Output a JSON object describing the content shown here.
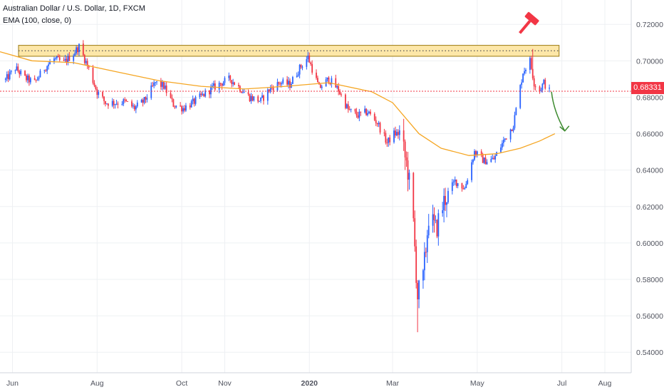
{
  "chart_data": {
    "type": "candlestick",
    "title": "Australian Dollar / U.S. Dollar, 1D, FXCM",
    "indicator_label": "EMA (100, close, 0)",
    "last_price_label": "0.68331",
    "last_price": 0.68331,
    "ylim": [
      0.535,
      0.724
    ],
    "y_ticks": [
      "0.54000",
      "0.56000",
      "0.58000",
      "0.60000",
      "0.62000",
      "0.64000",
      "0.66000",
      "0.68000",
      "0.70000",
      "0.72000"
    ],
    "y_tick_values": [
      0.54,
      0.56,
      0.58,
      0.6,
      0.62,
      0.64,
      0.66,
      0.68,
      0.7,
      0.72
    ],
    "x_range": [
      "2019-05-23",
      "2020-08-20"
    ],
    "x_ticks": [
      {
        "label": "Jun",
        "date": "2019-06-01",
        "bold": false
      },
      {
        "label": "Aug",
        "date": "2019-08-01",
        "bold": false
      },
      {
        "label": "Oct",
        "date": "2019-10-01",
        "bold": false
      },
      {
        "label": "Nov",
        "date": "2019-11-01",
        "bold": false
      },
      {
        "label": "2020",
        "date": "2020-01-01",
        "bold": true
      },
      {
        "label": "Mar",
        "date": "2020-03-01",
        "bold": false
      },
      {
        "label": "May",
        "date": "2020-05-01",
        "bold": false
      },
      {
        "label": "Jul",
        "date": "2020-07-01",
        "bold": false
      },
      {
        "label": "Aug",
        "date": "2020-08-01",
        "bold": false
      }
    ],
    "grid": true,
    "price_path": [
      [
        "2019-05-27",
        0.6895
      ],
      [
        "2019-06-03",
        0.696
      ],
      [
        "2019-06-10",
        0.6905
      ],
      [
        "2019-06-17",
        0.688
      ],
      [
        "2019-06-24",
        0.696
      ],
      [
        "2019-07-01",
        0.701
      ],
      [
        "2019-07-08",
        0.699
      ],
      [
        "2019-07-15",
        0.704
      ],
      [
        "2019-07-19",
        0.708
      ],
      [
        "2019-07-25",
        0.6975
      ],
      [
        "2019-08-01",
        0.683
      ],
      [
        "2019-08-07",
        0.677
      ],
      [
        "2019-08-14",
        0.677
      ],
      [
        "2019-08-21",
        0.6775
      ],
      [
        "2019-08-28",
        0.674
      ],
      [
        "2019-09-04",
        0.678
      ],
      [
        "2019-09-12",
        0.688
      ],
      [
        "2019-09-18",
        0.686
      ],
      [
        "2019-09-25",
        0.676
      ],
      [
        "2019-10-02",
        0.674
      ],
      [
        "2019-10-09",
        0.677
      ],
      [
        "2019-10-16",
        0.681
      ],
      [
        "2019-10-23",
        0.685
      ],
      [
        "2019-10-30",
        0.688
      ],
      [
        "2019-11-05",
        0.69
      ],
      [
        "2019-11-12",
        0.685
      ],
      [
        "2019-11-19",
        0.68
      ],
      [
        "2019-11-27",
        0.678
      ],
      [
        "2019-12-04",
        0.685
      ],
      [
        "2019-12-11",
        0.688
      ],
      [
        "2019-12-18",
        0.687
      ],
      [
        "2019-12-25",
        0.696
      ],
      [
        "2019-12-31",
        0.702
      ],
      [
        "2020-01-08",
        0.685
      ],
      [
        "2020-01-15",
        0.69
      ],
      [
        "2020-01-22",
        0.684
      ],
      [
        "2020-01-29",
        0.673
      ],
      [
        "2020-02-05",
        0.67
      ],
      [
        "2020-02-12",
        0.672
      ],
      [
        "2020-02-19",
        0.666
      ],
      [
        "2020-02-26",
        0.655
      ],
      [
        "2020-03-02",
        0.66
      ],
      [
        "2020-03-06",
        0.66
      ],
      [
        "2020-03-12",
        0.64
      ],
      [
        "2020-03-16",
        0.61
      ],
      [
        "2020-03-19",
        0.571
      ],
      [
        "2020-03-23",
        0.58
      ],
      [
        "2020-03-27",
        0.615
      ],
      [
        "2020-04-01",
        0.607
      ],
      [
        "2020-04-08",
        0.625
      ],
      [
        "2020-04-15",
        0.634
      ],
      [
        "2020-04-22",
        0.63
      ],
      [
        "2020-04-29",
        0.65
      ],
      [
        "2020-05-06",
        0.645
      ],
      [
        "2020-05-13",
        0.646
      ],
      [
        "2020-05-20",
        0.656
      ],
      [
        "2020-05-27",
        0.665
      ],
      [
        "2020-06-03",
        0.694
      ],
      [
        "2020-06-08",
        0.7
      ],
      [
        "2020-06-11",
        0.688
      ],
      [
        "2020-06-15",
        0.684
      ],
      [
        "2020-06-18",
        0.688
      ],
      [
        "2020-06-22",
        0.6833
      ]
    ],
    "price_extremes": [
      [
        "2020-03-19",
        0.551,
        "low"
      ],
      [
        "2020-06-10",
        0.7065,
        "high"
      ],
      [
        "2019-07-19",
        0.7085,
        "high"
      ]
    ],
    "ema_path": [
      [
        "2019-05-23",
        0.705
      ],
      [
        "2019-06-15",
        0.7
      ],
      [
        "2019-07-15",
        0.699
      ],
      [
        "2019-08-15",
        0.694
      ],
      [
        "2019-09-15",
        0.689
      ],
      [
        "2019-10-15",
        0.686
      ],
      [
        "2019-11-15",
        0.6845
      ],
      [
        "2019-12-15",
        0.686
      ],
      [
        "2020-01-15",
        0.688
      ],
      [
        "2020-02-15",
        0.683
      ],
      [
        "2020-03-01",
        0.677
      ],
      [
        "2020-03-20",
        0.66
      ],
      [
        "2020-04-05",
        0.652
      ],
      [
        "2020-04-25",
        0.648
      ],
      [
        "2020-05-15",
        0.649
      ],
      [
        "2020-06-01",
        0.652
      ],
      [
        "2020-06-15",
        0.656
      ],
      [
        "2020-06-26",
        0.66
      ]
    ],
    "resistance_zone": {
      "date_from": "2019-05-23",
      "date_to": "2020-06-29",
      "price_low": 0.7025,
      "price_high": 0.7085,
      "dotted_level": 0.7055
    },
    "forecast_arrow": {
      "from": [
        "2020-06-22",
        0.683
      ],
      "to": [
        "2020-06-29",
        0.6615
      ]
    },
    "colors": {
      "up": "#2962ff",
      "down": "#f23645",
      "ema": "#f5a623",
      "zone_fill": "#fde7a8",
      "zone_border": "#9b7a10",
      "arrow": "#3c8a2e",
      "gavel": "#f23645",
      "grid": "#eef0f3",
      "axis_text": "#50535e",
      "last_price": "#f23645"
    },
    "icon": "gavel-icon"
  }
}
